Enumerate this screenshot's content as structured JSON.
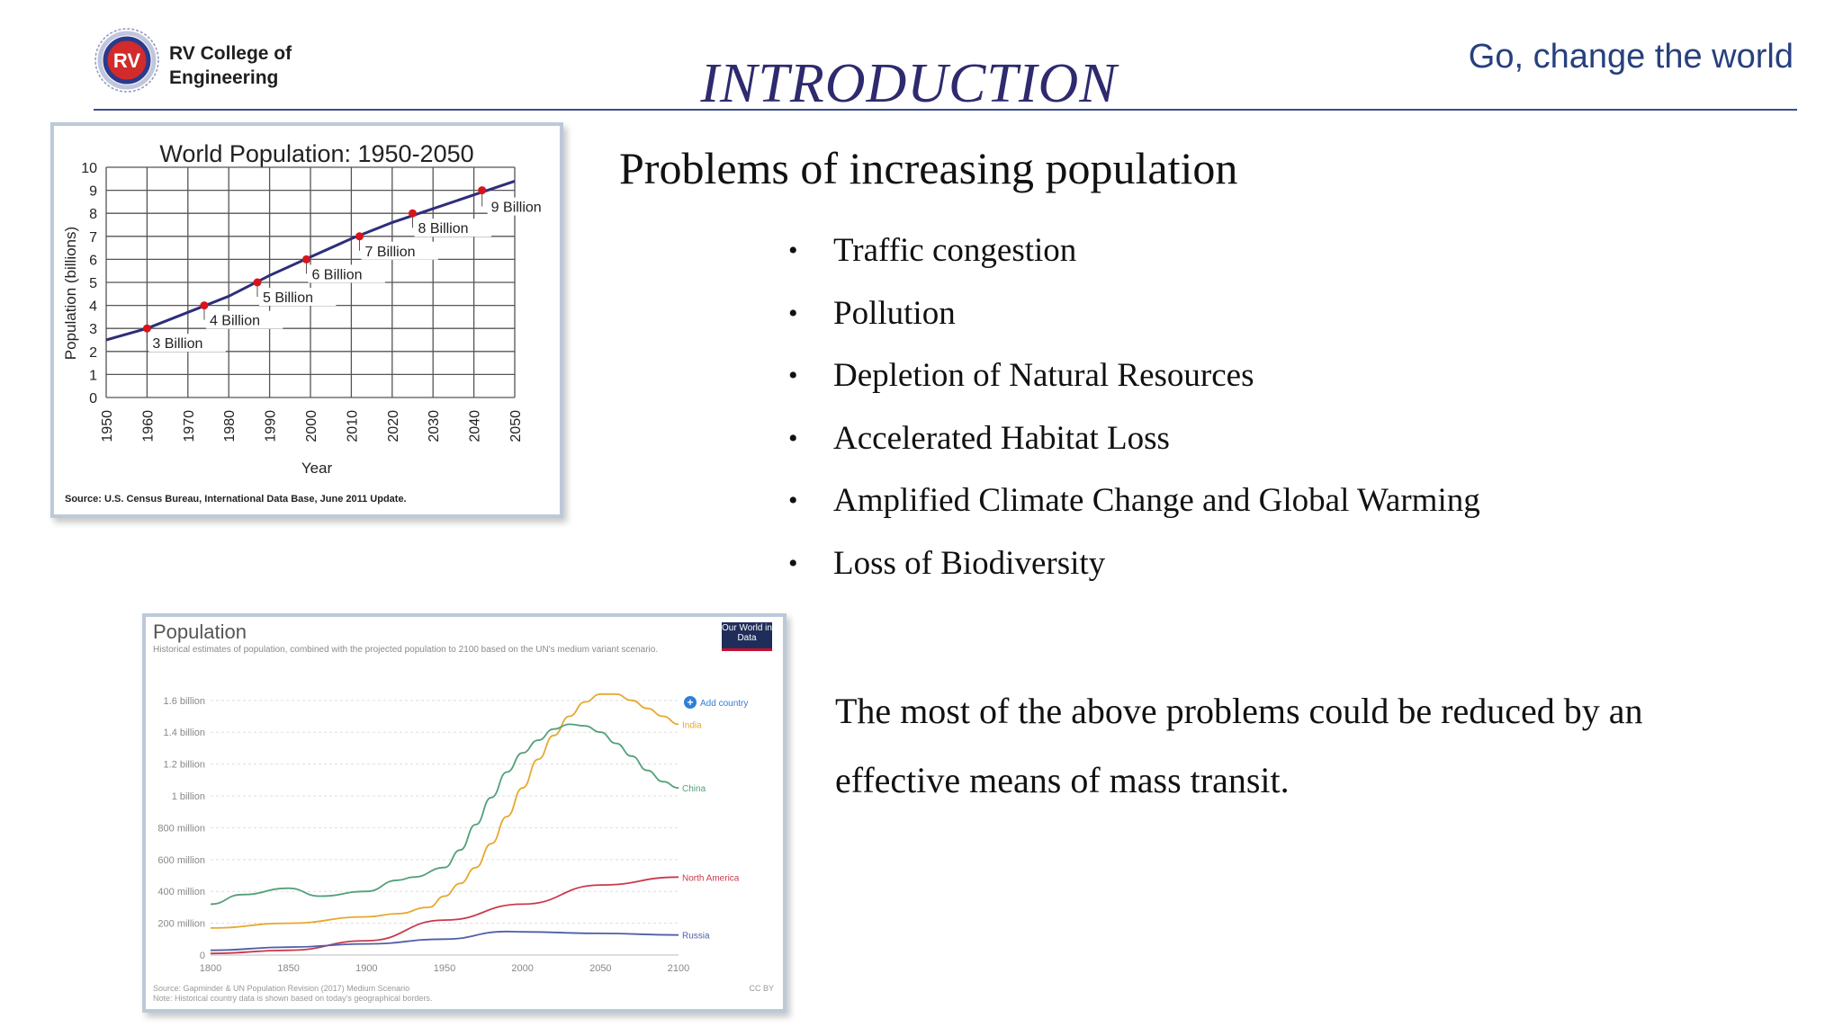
{
  "header": {
    "college_name_line1": "RV College of",
    "college_name_line2": "Engineering",
    "logo_text": "RV",
    "title": "INTRODUCTION",
    "tagline": "Go, change the world",
    "accent_color": "#2e2a6e",
    "logo_icon": "college-seal-icon"
  },
  "main": {
    "subheading": "Problems of increasing population",
    "problems": [
      "Traffic congestion",
      "Pollution",
      "Depletion of Natural Resources",
      "Accelerated Habitat Loss",
      "Amplified Climate Change and Global Warming",
      "Loss of Biodiversity"
    ],
    "conclusion_line1": "The most of the above problems could be reduced by an",
    "conclusion_line2": "effective means of mass transit."
  },
  "chart_data": [
    {
      "type": "line",
      "title": "World Population: 1950-2050",
      "xlabel": "Year",
      "ylabel": "Population (billions)",
      "xlim": [
        1950,
        2050
      ],
      "ylim": [
        0,
        10
      ],
      "grid": true,
      "x_ticks": [
        "1950",
        "1960",
        "1970",
        "1980",
        "1990",
        "2000",
        "2010",
        "2020",
        "2030",
        "2040",
        "2050"
      ],
      "y_ticks": [
        "0",
        "1",
        "2",
        "3",
        "4",
        "5",
        "6",
        "7",
        "8",
        "9",
        "10"
      ],
      "series": [
        {
          "x": [
            1950,
            1960,
            1970,
            1980,
            1990,
            2000,
            2010,
            2020,
            2030,
            2040,
            2050
          ],
          "y": [
            2.5,
            3.0,
            3.7,
            4.4,
            5.3,
            6.1,
            6.9,
            7.6,
            8.2,
            8.8,
            9.4
          ],
          "color": "#2d2e7a"
        }
      ],
      "milestones": [
        {
          "x": 1960,
          "y": 3,
          "label": "3 Billion"
        },
        {
          "x": 1974,
          "y": 4,
          "label": "4 Billion"
        },
        {
          "x": 1987,
          "y": 5,
          "label": "5 Billion"
        },
        {
          "x": 1999,
          "y": 6,
          "label": "6 Billion"
        },
        {
          "x": 2012,
          "y": 7,
          "label": "7 Billion"
        },
        {
          "x": 2025,
          "y": 8,
          "label": "8 Billion"
        },
        {
          "x": 2042,
          "y": 9,
          "label": "9 Billion"
        }
      ],
      "milestone_color": "#d7141b",
      "source": "Source: U.S. Census Bureau, International Data Base, June 2011 Update."
    },
    {
      "type": "line",
      "title": "Population",
      "subtitle": "Historical estimates of population, combined with the projected population to 2100 based on the UN's medium variant scenario.",
      "badge": "Our World in Data",
      "add_country": "Add country",
      "xlim": [
        1800,
        2100
      ],
      "ylim": [
        0,
        1650000000
      ],
      "grid": true,
      "x_ticks": [
        "1800",
        "1850",
        "1900",
        "1950",
        "2000",
        "2050",
        "2100"
      ],
      "y_ticks": [
        "0",
        "200 million",
        "400 million",
        "600 million",
        "800 million",
        "1 billion",
        "1.2 billion",
        "1.4 billion",
        "1.6 billion"
      ],
      "series": [
        {
          "name": "India",
          "color": "#e5a92f",
          "x": [
            1800,
            1850,
            1900,
            1920,
            1940,
            1950,
            1960,
            1970,
            1980,
            1990,
            2000,
            2010,
            2020,
            2030,
            2040,
            2050,
            2060,
            2070,
            2080,
            2090,
            2100
          ],
          "y": [
            170000000,
            200000000,
            240000000,
            260000000,
            300000000,
            370000000,
            450000000,
            550000000,
            700000000,
            870000000,
            1050000000,
            1230000000,
            1380000000,
            1500000000,
            1590000000,
            1640000000,
            1640000000,
            1600000000,
            1550000000,
            1500000000,
            1450000000
          ]
        },
        {
          "name": "China",
          "color": "#52a07a",
          "x": [
            1800,
            1820,
            1850,
            1870,
            1900,
            1920,
            1930,
            1950,
            1960,
            1970,
            1980,
            1990,
            2000,
            2010,
            2020,
            2030,
            2040,
            2050,
            2060,
            2070,
            2080,
            2090,
            2100
          ],
          "y": [
            320000000,
            380000000,
            420000000,
            370000000,
            400000000,
            470000000,
            490000000,
            550000000,
            660000000,
            820000000,
            990000000,
            1150000000,
            1270000000,
            1350000000,
            1420000000,
            1450000000,
            1440000000,
            1400000000,
            1330000000,
            1250000000,
            1160000000,
            1090000000,
            1050000000
          ]
        },
        {
          "name": "North America",
          "color": "#c83a4c",
          "x": [
            1800,
            1850,
            1900,
            1950,
            2000,
            2050,
            2100
          ],
          "y": [
            10000000,
            30000000,
            90000000,
            220000000,
            320000000,
            440000000,
            490000000
          ]
        },
        {
          "name": "Russia",
          "color": "#4f5fa8",
          "x": [
            1800,
            1850,
            1900,
            1950,
            1990,
            2000,
            2050,
            2100
          ],
          "y": [
            30000000,
            50000000,
            70000000,
            100000000,
            148000000,
            146000000,
            136000000,
            126000000
          ]
        }
      ],
      "source": "Source: Gapminder & UN Population Revision (2017) Medium Scenario",
      "note": "Note: Historical country data is shown based on today's geographical borders.",
      "license": "CC BY"
    }
  ]
}
